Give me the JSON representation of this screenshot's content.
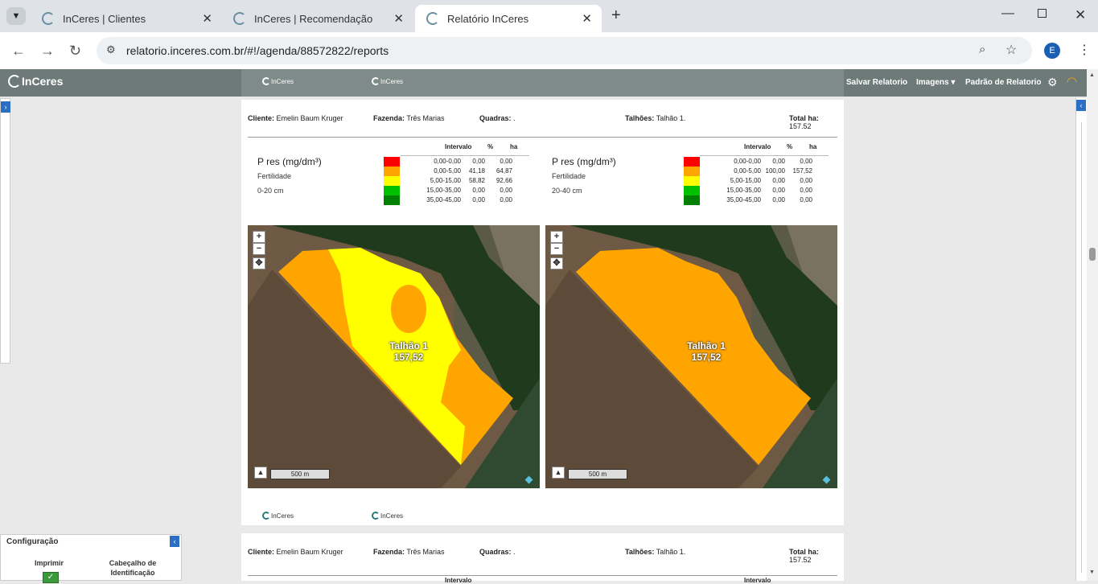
{
  "browser": {
    "tabs": [
      {
        "title": "InCeres | Clientes"
      },
      {
        "title": "InCeres | Recomendação"
      },
      {
        "title": "Relatório InCeres"
      }
    ],
    "url": "relatorio.inceres.com.br/#!/agenda/88572822/reports",
    "profile_initial": "E"
  },
  "app": {
    "logo": "InCeres",
    "header_logo_small": "InCeres",
    "menu": {
      "save": "Salvar Relatorio",
      "images": "Imagens",
      "report_default": "Padrão de Relatorio"
    }
  },
  "report": {
    "client_label": "Cliente:",
    "client": "Emelin Baum Kruger",
    "farm_label": "Fazenda:",
    "farm": "Três Marias",
    "blocks_label": "Quadras:",
    "blocks": ".",
    "plots_label": "Talhões:",
    "plots": "Talhão 1.",
    "total_label": "Total ha:",
    "total": "157.52",
    "legend_headers": {
      "interval": "Intervalo",
      "pct": "%",
      "ha": "ha"
    },
    "left": {
      "title": "P res (mg/dm³)",
      "subtitle": "Fertilidade",
      "depth": "0-20 cm",
      "rows": [
        {
          "interval": "0,00-0,00",
          "pct": "0,00",
          "ha": "0,00",
          "color": "#ff0000"
        },
        {
          "interval": "0,00-5,00",
          "pct": "41,18",
          "ha": "64,87",
          "color": "#ffa500"
        },
        {
          "interval": "5,00-15,00",
          "pct": "58,82",
          "ha": "92,66",
          "color": "#ffff00"
        },
        {
          "interval": "15,00-35,00",
          "pct": "0,00",
          "ha": "0,00",
          "color": "#00c000"
        },
        {
          "interval": "35,00-45,00",
          "pct": "0,00",
          "ha": "0,00",
          "color": "#008000"
        }
      ],
      "map_label": "Talhão 1",
      "map_value": "157,52",
      "scale": "500 m"
    },
    "right": {
      "title": "P res (mg/dm³)",
      "subtitle": "Fertilidade",
      "depth": "20-40 cm",
      "rows": [
        {
          "interval": "0,00-0,00",
          "pct": "0,00",
          "ha": "0,00",
          "color": "#ff0000"
        },
        {
          "interval": "0,00-5,00",
          "pct": "100,00",
          "ha": "157,52",
          "color": "#ffa500"
        },
        {
          "interval": "5,00-15,00",
          "pct": "0,00",
          "ha": "0,00",
          "color": "#ffff00"
        },
        {
          "interval": "15,00-35,00",
          "pct": "0,00",
          "ha": "0,00",
          "color": "#00c000"
        },
        {
          "interval": "35,00-45,00",
          "pct": "0,00",
          "ha": "0,00",
          "color": "#008000"
        }
      ],
      "map_label": "Talhão 1",
      "map_value": "157,52",
      "scale": "500 m"
    },
    "next_page": {
      "client": "Emelin Baum Kruger",
      "farm": "Três Marias",
      "blocks": ".",
      "plots": "Talhão 1.",
      "total": "157.52",
      "partial_text": "Intervalo"
    }
  },
  "config": {
    "title": "Configuração",
    "print": "Imprimir",
    "header_id": "Cabeçalho de Identificação"
  }
}
